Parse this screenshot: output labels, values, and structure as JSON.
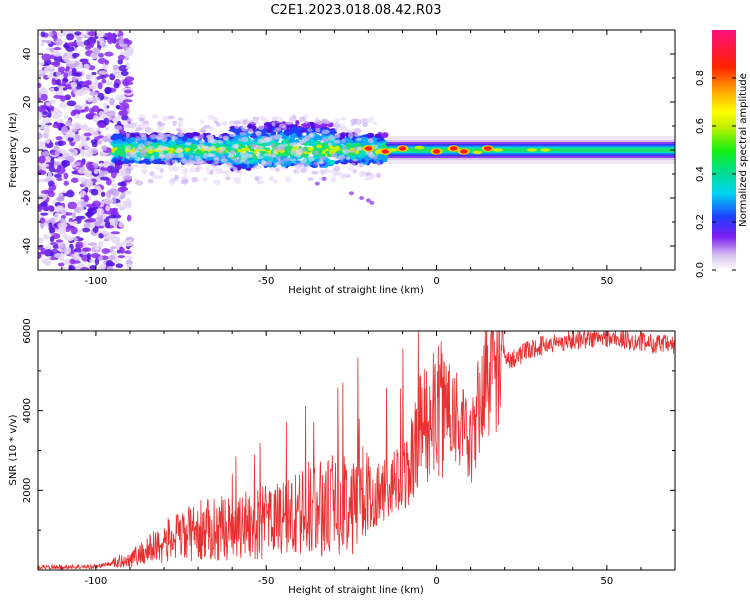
{
  "title": "C2E1.2023.018.08.42.R03",
  "chart_data": [
    {
      "type": "heatmap",
      "xlabel": "Height of straight line (km)",
      "ylabel": "Frequency (Hz)",
      "xlim": [
        -117,
        70
      ],
      "ylim": [
        -50,
        50
      ],
      "xticks": [
        -100,
        -50,
        0,
        50
      ],
      "xtick_labels": [
        "-100",
        "-50",
        "0",
        "50"
      ],
      "yticks": [
        -40,
        -20,
        0,
        20,
        40
      ],
      "ytick_labels": [
        "-40",
        "-20",
        "0",
        "20",
        "40"
      ],
      "colorbar": {
        "label": "Normalized spectral amplitude",
        "range": [
          0,
          1
        ],
        "ticks": [
          0.0,
          0.2,
          0.4,
          0.6,
          0.8
        ],
        "tick_labels": [
          "0.0",
          "0.2",
          "0.4",
          "0.6",
          "0.8"
        ],
        "colormap": "rainbow"
      },
      "features": {
        "noise_region_x": [
          -117,
          -92
        ],
        "signal_band_center_hz": 0,
        "signal_start_x": -95,
        "strong_peaks_x": [
          -20,
          -15,
          -10,
          0,
          5,
          8,
          15
        ]
      }
    },
    {
      "type": "line",
      "xlabel": "Height of straight line (km)",
      "ylabel": "SNR (10 * v/v)",
      "xlim": [
        -117,
        70
      ],
      "ylim": [
        0,
        6000
      ],
      "xticks": [
        -100,
        -50,
        0,
        50
      ],
      "xtick_labels": [
        "-100",
        "-50",
        "0",
        "50"
      ],
      "yticks": [
        2000,
        4000,
        6000
      ],
      "ytick_labels": [
        "2000",
        "4000",
        "6000"
      ],
      "line_color": "#e83030",
      "trend": {
        "x": [
          -117,
          -100,
          -90,
          -80,
          -70,
          -60,
          -50,
          -40,
          -30,
          -20,
          -10,
          -5,
          0,
          5,
          8,
          10,
          13,
          15,
          20,
          30,
          40,
          50,
          60,
          70
        ],
        "y": [
          60,
          80,
          250,
          650,
          900,
          1000,
          1100,
          1300,
          1500,
          1750,
          2100,
          3300,
          3800,
          4000,
          3300,
          2900,
          4200,
          4800,
          5200,
          5600,
          5750,
          5800,
          5700,
          5600
        ]
      }
    }
  ]
}
